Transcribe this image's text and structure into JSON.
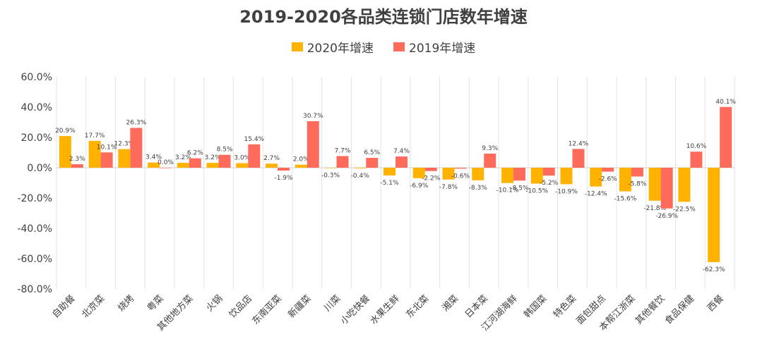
{
  "chart_data": {
    "type": "bar",
    "title": "2019-2020各品类连锁门店数年增速",
    "categories": [
      "自助餐",
      "北京菜",
      "烧烤",
      "粤菜",
      "其他地方菜",
      "火锅",
      "饮品店",
      "东南亚菜",
      "新疆菜",
      "川菜",
      "小吃快餐",
      "水果生鲜",
      "东北菜",
      "湘菜",
      "日本菜",
      "江河湖海鲜",
      "韩国菜",
      "特色菜",
      "面包甜点",
      "本帮江浙菜",
      "其他餐饮",
      "食品保健",
      "西餐"
    ],
    "series": [
      {
        "name": "2020年增速",
        "color": "#FFB300",
        "values": [
          20.9,
          17.7,
          12.3,
          3.4,
          3.2,
          3.2,
          3.0,
          2.7,
          2.0,
          -0.3,
          -0.4,
          -5.1,
          -6.9,
          -7.8,
          -8.3,
          -10.1,
          -10.5,
          -10.9,
          -12.4,
          -15.6,
          -21.8,
          -22.5,
          -62.3
        ]
      },
      {
        "name": "2019年增速",
        "color": "#FF6B5B",
        "values": [
          2.3,
          10.1,
          26.3,
          0.0,
          6.2,
          8.5,
          15.4,
          -1.9,
          30.7,
          7.7,
          6.5,
          7.4,
          -2.2,
          -0.6,
          9.3,
          -8.5,
          -5.2,
          12.4,
          -2.6,
          -5.8,
          -26.9,
          10.6,
          40.1
        ]
      }
    ],
    "ylim": [
      -80,
      60
    ],
    "yticks": [
      "60.0%",
      "40.0%",
      "20.0%",
      "0.0%",
      "-20.0%",
      "-40.0%",
      "-60.0%",
      "-80.0%"
    ],
    "ytick_values": [
      60,
      40,
      20,
      0,
      -20,
      -40,
      -60,
      -80
    ],
    "grid": "vertical",
    "legend_position": "top"
  }
}
